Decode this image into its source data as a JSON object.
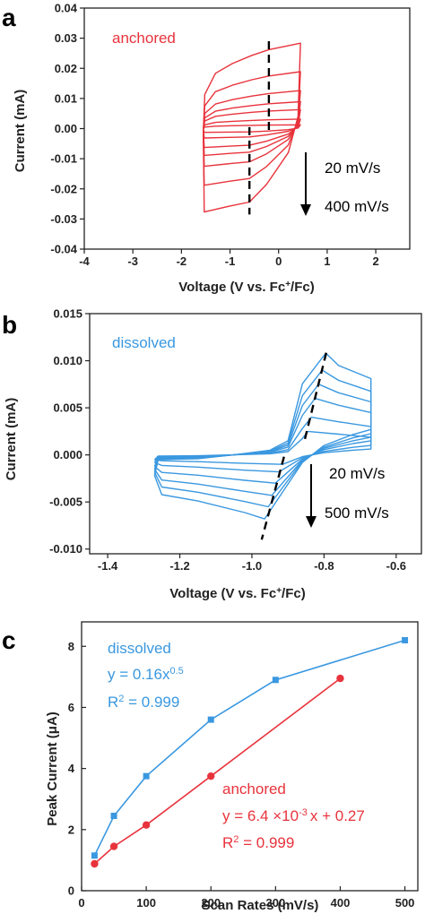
{
  "figure": {
    "colors": {
      "anchored": "#e8333c",
      "dissolved": "#3a98e0",
      "axis": "#222222",
      "arrow": "#000000"
    }
  },
  "chart_data": [
    {
      "panel": "a",
      "type": "line",
      "title": "",
      "xlabel": "Voltage (V vs. Fc+/Fc)",
      "ylabel": "Current (mA)",
      "xlim": [
        -4,
        2.7
      ],
      "ylim": [
        -0.04,
        0.04
      ],
      "xticks": [
        -4,
        -3,
        -2,
        -1,
        0,
        1,
        2
      ],
      "yticks": [
        -0.04,
        -0.03,
        -0.02,
        -0.01,
        0.0,
        0.01,
        0.02,
        0.03,
        0.04
      ],
      "ytick_labels": [
        "-0.04",
        "-0.03",
        "-0.02",
        "-0.01",
        "0.00",
        "0.01",
        "0.02",
        "0.03",
        "0.04"
      ],
      "annotation": "anchored",
      "scan_rate_labels": [
        "20 mV/s",
        "400 mV/s"
      ],
      "voltage_window": [
        -1.55,
        0.45
      ],
      "peak_markers": {
        "anodic_voltage": -0.2,
        "cathodic_voltage": -0.6
      },
      "series": [
        {
          "scan_rate": 20,
          "anodic_peak": 0.0012,
          "cathodic_peak": -0.0012
        },
        {
          "scan_rate": 50,
          "anodic_peak": 0.003,
          "cathodic_peak": -0.003
        },
        {
          "scan_rate": 100,
          "anodic_peak": 0.006,
          "cathodic_peak": -0.006
        },
        {
          "scan_rate": 150,
          "anodic_peak": 0.0085,
          "cathodic_peak": -0.0085
        },
        {
          "scan_rate": 200,
          "anodic_peak": 0.012,
          "cathodic_peak": -0.012
        },
        {
          "scan_rate": 300,
          "anodic_peak": 0.018,
          "cathodic_peak": -0.018
        },
        {
          "scan_rate": 400,
          "anodic_peak": 0.027,
          "cathodic_peak": -0.0265
        }
      ]
    },
    {
      "panel": "b",
      "type": "line",
      "title": "",
      "xlabel": "Voltage (V vs. Fc+/Fc)",
      "ylabel": "Current (mA)",
      "xlim": [
        -1.45,
        -0.53
      ],
      "ylim": [
        -0.0105,
        0.015
      ],
      "xticks": [
        -1.4,
        -1.2,
        -1.0,
        -0.8,
        -0.6
      ],
      "xtick_labels": [
        "-1.4",
        "-1.2",
        "-1.0",
        "-0.8",
        "-0.6"
      ],
      "yticks": [
        -0.01,
        -0.005,
        0.0,
        0.005,
        0.01,
        0.015
      ],
      "ytick_labels": [
        "-0.010",
        "-0.005",
        "0.000",
        "0.005",
        "0.010",
        "0.015"
      ],
      "annotation": "dissolved",
      "scan_rate_labels": [
        "20 mV/s",
        "500 mV/s"
      ],
      "voltage_window": [
        -1.27,
        -0.67
      ],
      "series": [
        {
          "scan_rate": 20,
          "anodic_peak": 0.0025,
          "anodic_peak_v": -0.845,
          "cathodic_peak": -0.001,
          "cathodic_peak_v": -0.915
        },
        {
          "scan_rate": 50,
          "anodic_peak": 0.004,
          "anodic_peak_v": -0.835,
          "cathodic_peak": -0.0018,
          "cathodic_peak_v": -0.925
        },
        {
          "scan_rate": 100,
          "anodic_peak": 0.006,
          "anodic_peak_v": -0.825,
          "cathodic_peak": -0.003,
          "cathodic_peak_v": -0.935
        },
        {
          "scan_rate": 200,
          "anodic_peak": 0.0075,
          "anodic_peak_v": -0.815,
          "cathodic_peak": -0.0043,
          "cathodic_peak_v": -0.945
        },
        {
          "scan_rate": 300,
          "anodic_peak": 0.009,
          "anodic_peak_v": -0.805,
          "cathodic_peak": -0.0055,
          "cathodic_peak_v": -0.955
        },
        {
          "scan_rate": 500,
          "anodic_peak": 0.0108,
          "anodic_peak_v": -0.795,
          "cathodic_peak": -0.0068,
          "cathodic_peak_v": -0.965
        }
      ]
    },
    {
      "panel": "c",
      "type": "line",
      "title": "",
      "xlabel": "Scan Rates (mV/s)",
      "ylabel": "Peak Current (μA)",
      "xlim": [
        0,
        520
      ],
      "ylim": [
        0,
        8.8
      ],
      "xticks": [
        0,
        100,
        200,
        300,
        400,
        500
      ],
      "yticks": [
        0,
        2,
        4,
        6,
        8
      ],
      "series": [
        {
          "name": "dissolved",
          "marker": "square",
          "x": [
            20,
            50,
            100,
            200,
            300,
            500
          ],
          "y": [
            1.15,
            2.45,
            3.75,
            5.6,
            6.9,
            8.2
          ]
        },
        {
          "name": "anchored",
          "marker": "circle",
          "x": [
            20,
            50,
            100,
            200,
            400
          ],
          "y": [
            0.88,
            1.45,
            2.15,
            3.75,
            6.95
          ]
        }
      ],
      "annotations": {
        "dissolved": {
          "label": "dissolved",
          "fit": "y = 0.16x",
          "fit_exp": "0.5",
          "r2_prefix": "R",
          "r2_exp": "2",
          "r2_value": " = 0.999"
        },
        "anchored": {
          "label": "anchored",
          "fit_prefix": "y = 6.4 ×10",
          "fit_exp": "-3",
          "fit_suffix": "x + 0.27",
          "r2_prefix": "R",
          "r2_exp": "2",
          "r2_value": " = 0.999"
        }
      }
    }
  ]
}
